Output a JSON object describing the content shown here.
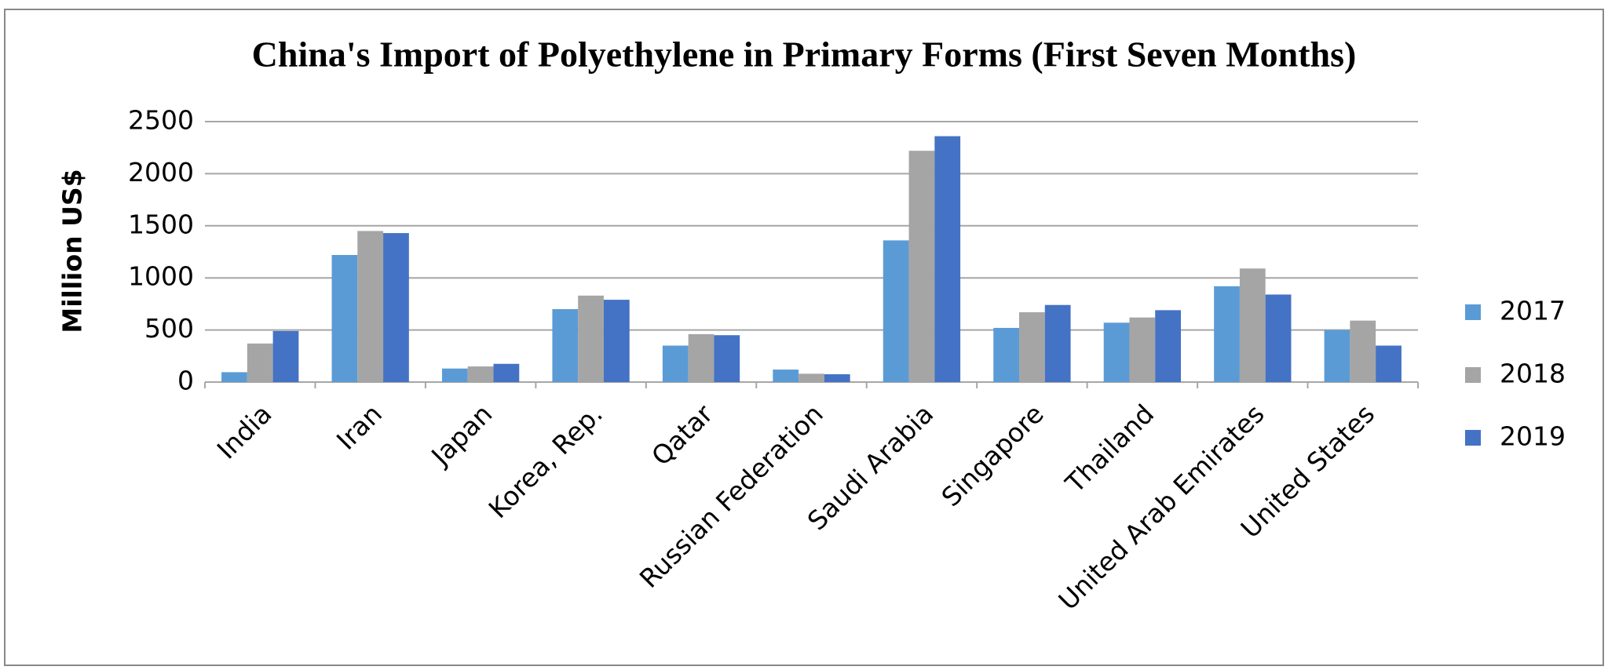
{
  "chart_data": {
    "type": "bar",
    "title": "China's Import of Polyethylene in Primary Forms (First Seven Months)",
    "y_label": "Million US$",
    "categories": [
      "India",
      "Iran",
      "Japan",
      "Korea, Rep.",
      "Qatar",
      "Russian Federation",
      "Saudi Arabia",
      "Singapore",
      "Thailand",
      "United Arab Emirates",
      "United States"
    ],
    "series": [
      {
        "name": "2017",
        "color": "#5b9bd5",
        "values": [
          95,
          1220,
          130,
          700,
          350,
          120,
          1360,
          520,
          570,
          920,
          500
        ]
      },
      {
        "name": "2018",
        "color": "#a5a5a5",
        "values": [
          370,
          1450,
          150,
          830,
          460,
          80,
          2220,
          670,
          620,
          1090,
          590
        ]
      },
      {
        "name": "2019",
        "color": "#4472c4",
        "values": [
          490,
          1430,
          175,
          790,
          450,
          75,
          2360,
          740,
          690,
          840,
          350
        ]
      }
    ],
    "ylim": [
      0,
      2500
    ],
    "yticks": [
      0,
      500,
      1000,
      1500,
      2000,
      2500
    ],
    "grid": true,
    "legend": "right"
  }
}
